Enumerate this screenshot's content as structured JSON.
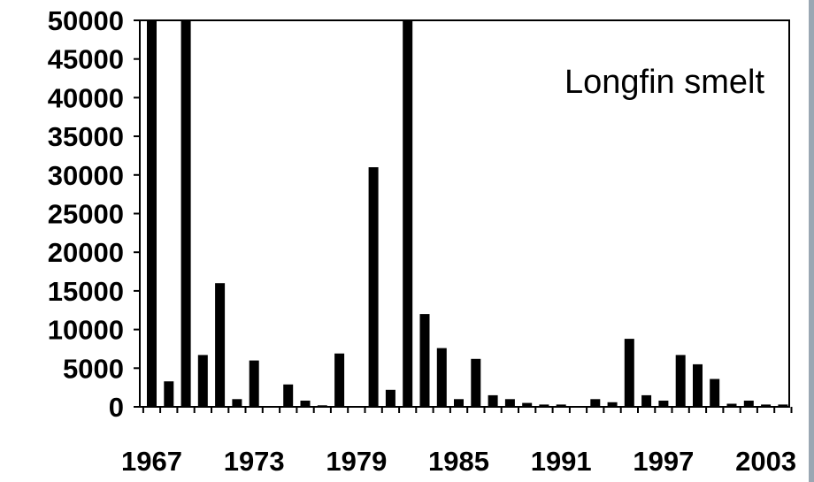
{
  "chart_data": {
    "type": "bar",
    "title": "Longfin smelt",
    "xlabel": "",
    "ylabel": "",
    "ylim": [
      0,
      50000
    ],
    "yticks": [
      0,
      5000,
      10000,
      15000,
      20000,
      25000,
      30000,
      35000,
      40000,
      45000,
      50000
    ],
    "xticks": [
      "1967",
      "1973",
      "1979",
      "1985",
      "1991",
      "1997",
      "2003"
    ],
    "grid": false,
    "legend": "none",
    "bar_color": "#000000",
    "categories": [
      "1967",
      "1968",
      "1969",
      "1970",
      "1971",
      "1972",
      "1973",
      "1974",
      "1975",
      "1976",
      "1977",
      "1978",
      "1979",
      "1980",
      "1981",
      "1982",
      "1983",
      "1984",
      "1985",
      "1986",
      "1987",
      "1988",
      "1989",
      "1990",
      "1991",
      "1992",
      "1993",
      "1994",
      "1995",
      "1996",
      "1997",
      "1998",
      "1999",
      "2000",
      "2001",
      "2002",
      "2003",
      "2004"
    ],
    "values": [
      50000,
      3300,
      50000,
      6700,
      16000,
      1000,
      6000,
      0,
      2900,
      800,
      200,
      6900,
      0,
      31000,
      2200,
      50000,
      12000,
      7600,
      1000,
      6200,
      1500,
      1000,
      500,
      300,
      300,
      0,
      1000,
      600,
      8800,
      1500,
      800,
      6700,
      5500,
      3600,
      400,
      800,
      300,
      300
    ]
  }
}
